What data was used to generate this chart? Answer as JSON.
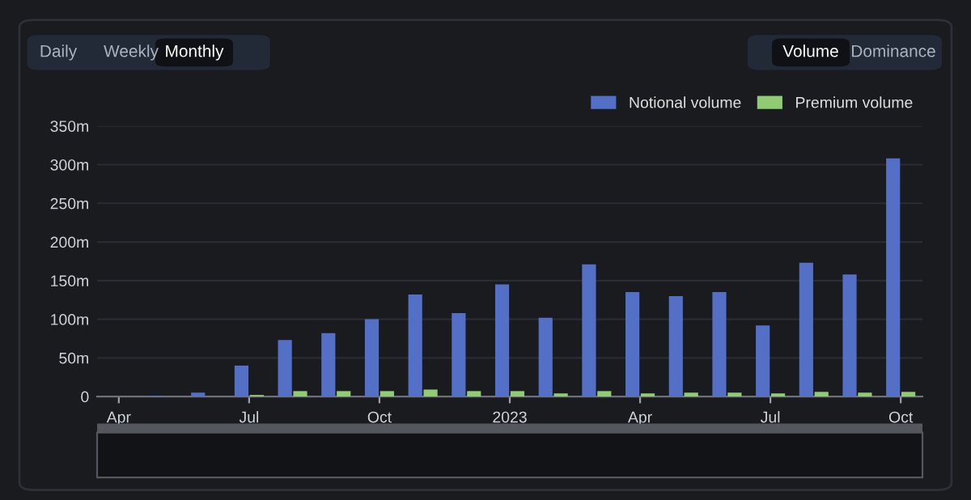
{
  "chart_data": {
    "type": "bar",
    "categories": [
      "Apr",
      null,
      null,
      "Jul",
      null,
      null,
      "Oct",
      null,
      null,
      "2023",
      null,
      null,
      "Apr",
      null,
      null,
      "Jul",
      null,
      null,
      "Oct"
    ],
    "series": [
      {
        "name": "Notional volume",
        "color": "#5470c6",
        "values": [
          0,
          1,
          5,
          40,
          73,
          82,
          100,
          132,
          108,
          145,
          102,
          171,
          135,
          130,
          135,
          92,
          173,
          158,
          308
        ]
      },
      {
        "name": "Premium volume",
        "color": "#91cc75",
        "values": [
          0,
          0,
          0,
          2,
          7,
          7,
          7,
          9,
          7,
          7,
          4,
          7,
          4,
          5,
          5,
          4,
          6,
          5,
          6
        ]
      }
    ],
    "ylim": [
      0,
      350
    ],
    "yticks": [
      0,
      {
        "value": 50,
        "label": "50m"
      },
      {
        "value": 100,
        "label": "100m"
      },
      {
        "value": 150,
        "label": "150m"
      },
      {
        "value": 200,
        "label": "200m"
      },
      {
        "value": 250,
        "label": "250m"
      },
      {
        "value": 300,
        "label": "300m"
      },
      {
        "value": 350,
        "label": "350m"
      }
    ],
    "grid": "y",
    "legend": "top right",
    "annotations": [
      "Daily",
      "Weekly",
      "Monthly",
      "Volume",
      "Dominance"
    ]
  }
}
